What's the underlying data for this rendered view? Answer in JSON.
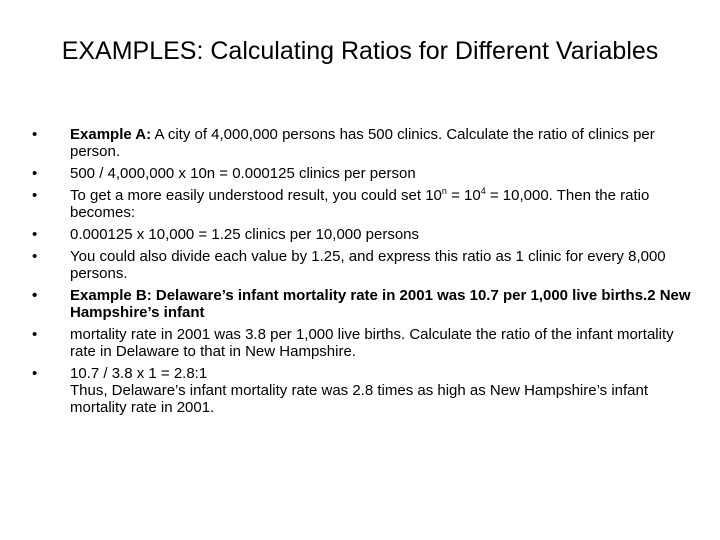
{
  "title": "EXAMPLES: Calculating Ratios for Different Variables",
  "bullet_symbol": "•",
  "items": [
    {
      "label": "Example A:",
      "text": " A city of 4,000,000 persons has 500 clinics. Calculate the ratio of clinics per person."
    },
    {
      "text": "500 / 4,000,000 x 10n = 0.000125 clinics per person"
    },
    {
      "text_a": "To get a more easily understood result, you could set 10",
      "sup_a": "n",
      "text_b": " = 10",
      "sup_b": "4",
      "text_c": " = 10,000. Then the ratio becomes:"
    },
    {
      "text": "0.000125 x 10,000 = 1.25 clinics per 10,000 persons"
    },
    {
      "text": "You could also divide each value by 1.25, and express this ratio as 1 clinic for every 8,000 persons."
    },
    {
      "text": "Example B: Delaware’s infant mortality rate in 2001 was 10.7 per 1,000 live births.2 New Hampshire’s infant"
    },
    {
      "text": "mortality rate in 2001 was 3.8 per 1,000 live births. Calculate the ratio of the infant mortality rate in Delaware to that in New Hampshire."
    },
    {
      "text": "10.7 / 3.8 x 1 = 2.8:1",
      "continuation": "Thus, Delaware’s infant mortality rate was 2.8 times as high as New Hampshire’s infant mortality rate in 2001."
    }
  ]
}
